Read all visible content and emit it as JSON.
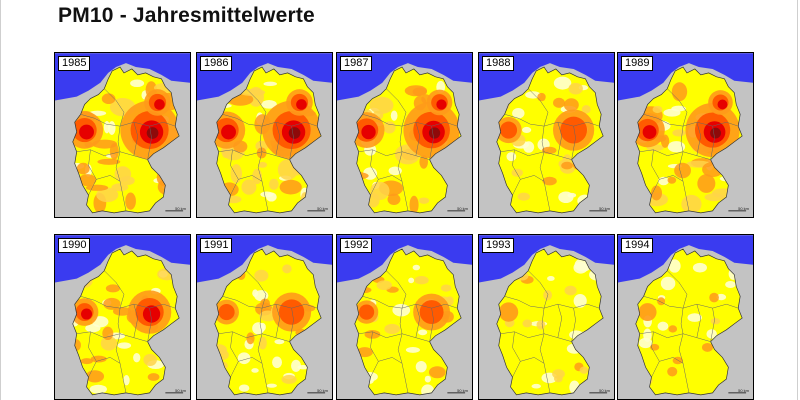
{
  "title": "PM10 - Jahresmittelwerte",
  "scale_label": "50 km",
  "colors": {
    "sea": "#3a3bf0",
    "neighbor": "#c3c3c3",
    "base": "#ffff00",
    "pale": "#ffffd0",
    "light_orange": "#ffd34a",
    "orange": "#ff9a1a",
    "red_orange": "#ff5a00",
    "red": "#e60000",
    "dark_red": "#8e0a0a",
    "border_line": "#666666"
  },
  "panels": [
    {
      "year": "1985",
      "intensity": 0.95,
      "hotspots": [
        "saxony-core",
        "north-rhine",
        "berlin"
      ]
    },
    {
      "year": "1986",
      "intensity": 0.95,
      "hotspots": [
        "saxony-core",
        "north-rhine",
        "berlin"
      ]
    },
    {
      "year": "1987",
      "intensity": 0.9,
      "hotspots": [
        "saxony-core",
        "north-rhine",
        "berlin"
      ]
    },
    {
      "year": "1988",
      "intensity": 0.55,
      "hotspots": [
        "saxony-core",
        "north-rhine"
      ]
    },
    {
      "year": "1989",
      "intensity": 0.85,
      "hotspots": [
        "saxony-core",
        "north-rhine",
        "berlin"
      ]
    },
    {
      "year": "1990",
      "intensity": 0.6,
      "hotspots": [
        "saxony-core",
        "north-rhine"
      ]
    },
    {
      "year": "1991",
      "intensity": 0.5,
      "hotspots": [
        "saxony-core",
        "north-rhine"
      ]
    },
    {
      "year": "1992",
      "intensity": 0.45,
      "hotspots": [
        "saxony-core",
        "north-rhine"
      ]
    },
    {
      "year": "1993",
      "intensity": 0.3,
      "hotspots": [
        "north-rhine"
      ]
    },
    {
      "year": "1994",
      "intensity": 0.25,
      "hotspots": [
        "north-rhine"
      ]
    }
  ]
}
